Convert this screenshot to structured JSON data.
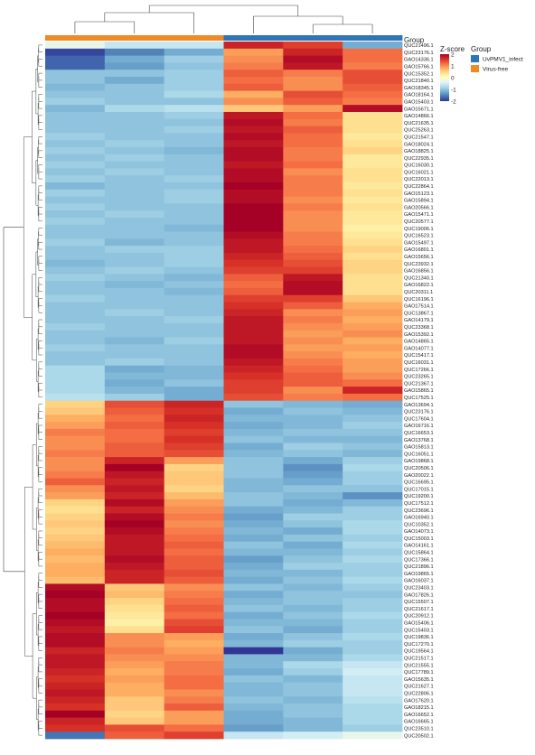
{
  "chart_data": {
    "type": "heatmap",
    "title": "",
    "group_label": "Group",
    "zscore_label": "Z-score",
    "legend_groups": [
      {
        "name": "UvPMV1_infect",
        "color": "#2e75b6"
      },
      {
        "name": "Virus-free",
        "color": "#f08a24"
      }
    ],
    "column_groups": [
      "Virus-free",
      "Virus-free",
      "Virus-free",
      "UvPMV1_infect",
      "UvPMV1_infect",
      "UvPMV1_infect"
    ],
    "color_scale": {
      "range": [
        -2,
        2
      ],
      "ticks": [
        2,
        1,
        0,
        -1,
        -2
      ],
      "colors": [
        "#313695",
        "#4575b4",
        "#74add1",
        "#abd9e9",
        "#e0f3f8",
        "#ffffbf",
        "#fee090",
        "#fdae61",
        "#f46d43",
        "#d73027",
        "#a50026"
      ]
    },
    "rows": [
      "QUC21496.1",
      "QUC23176.1",
      "GAO14336.1",
      "GAO15766.1",
      "QUC15352.1",
      "QUC21840.1",
      "GAO18345.1",
      "GAO18164.1",
      "GAO15403.1",
      "GAO15671.1",
      "GAO14866.1",
      "QUC21635.1",
      "QUC25263.1",
      "QUC21547.1",
      "GAO18024.1",
      "GAO18825.1",
      "QUC22935.1",
      "QUC16030.1",
      "QUC16021.1",
      "QUC22013.1",
      "QUC22864.1",
      "GAO15123.1",
      "GAO15894.1",
      "GAO20566.1",
      "GAO15471.1",
      "QUC20577.1",
      "QUC19006.1",
      "QUC16523.1",
      "GAO15497.1",
      "GAO16801.1",
      "GAO15656.1",
      "QUC23932.1",
      "GAO16856.1",
      "QUC21340.1",
      "GAO16822.1",
      "QUC20311.1",
      "QUC16196.1",
      "GAO17514.1",
      "QUC13867.1",
      "GAO14179.1",
      "QUC23368.1",
      "GAO15392.1",
      "GAO14865.1",
      "GAO14077.1",
      "QUC15417.1",
      "QUC16031.1",
      "QUC17266.1",
      "QUC23265.1",
      "QUC21367.1",
      "GAO15865.1",
      "QUC17525.1",
      "GAO13694.1",
      "QUC23176.1",
      "QUC17604.1",
      "GAO16716.1",
      "QUC16653.1",
      "GAO13768.1",
      "GAO15813.1",
      "QUC16051.1",
      "GAO19868.1",
      "QUC20506.1",
      "GAO20022.1",
      "QUC16695.1",
      "QUC17015.1",
      "QUC19200.1",
      "QUC17512.1",
      "QUC23696.1",
      "GAO16940.1",
      "QUC10352.1",
      "GAO14073.1",
      "QUC15003.1",
      "GAO14161.1",
      "QUC15864.1",
      "QUC17366.1",
      "QUC21896.1",
      "GAO19865.1",
      "GAO16037.1",
      "QUC23403.1",
      "GAO17826.1",
      "QUC15507.1",
      "QUC21617.1",
      "QUC20912.1",
      "GAO15406.1",
      "QUC15403.1",
      "QUC19836.1",
      "QUC17270.1",
      "QUC19564.1",
      "QUC21517.1",
      "QUC21555.1",
      "QUC17789.1",
      "GAO15635.1",
      "QUC21627.1",
      "QUC22806.1",
      "GAO17620.1",
      "GAO18215.1",
      "GAO16652.1",
      "GAO16665.1",
      "QUC23510.1",
      "QUC20502.1"
    ],
    "values": [
      [
        -0.3,
        -0.6,
        -0.6,
        1.7,
        1.5,
        -1.2
      ],
      [
        -1.9,
        -1.5,
        -1.2,
        0.9,
        1.7,
        1.2
      ],
      [
        -1.7,
        -1.2,
        -0.9,
        1.0,
        1.9,
        1.2
      ],
      [
        -1.7,
        -1.3,
        -1.0,
        1.1,
        1.8,
        1.1
      ],
      [
        -1.0,
        -1.0,
        -0.9,
        1.3,
        1.1,
        1.4
      ],
      [
        -1.0,
        -1.2,
        -0.9,
        1.2,
        1.0,
        1.4
      ],
      [
        -1.1,
        -1.0,
        -0.9,
        1.3,
        1.0,
        1.3
      ],
      [
        -1.0,
        -1.0,
        -0.8,
        0.8,
        1.4,
        1.2
      ],
      [
        -0.9,
        -1.0,
        -1.0,
        1.0,
        1.3,
        1.1
      ],
      [
        -1.1,
        -0.8,
        -0.7,
        0.6,
        0.9,
        1.9
      ],
      [
        -1.0,
        -1.0,
        -0.9,
        1.8,
        1.2,
        0.4
      ],
      [
        -1.0,
        -1.0,
        -1.0,
        1.9,
        1.1,
        0.4
      ],
      [
        -1.0,
        -1.0,
        -0.9,
        1.8,
        1.3,
        0.4
      ],
      [
        -0.9,
        -1.0,
        -1.0,
        1.9,
        1.2,
        0.3
      ],
      [
        -1.0,
        -0.9,
        -1.0,
        1.8,
        1.2,
        0.4
      ],
      [
        -0.9,
        -1.0,
        -1.1,
        1.9,
        1.1,
        0.5
      ],
      [
        -1.0,
        -0.9,
        -1.0,
        1.9,
        1.1,
        0.3
      ],
      [
        -0.9,
        -1.0,
        -1.0,
        1.8,
        1.2,
        0.3
      ],
      [
        -1.0,
        -0.9,
        -1.0,
        1.9,
        1.0,
        0.4
      ],
      [
        -0.9,
        -1.0,
        -0.9,
        1.9,
        1.1,
        0.4
      ],
      [
        -1.1,
        -1.0,
        -1.0,
        2.0,
        1.1,
        0.3
      ],
      [
        -0.9,
        -1.0,
        -0.9,
        1.9,
        1.1,
        0.4
      ],
      [
        -1.0,
        -1.0,
        -0.9,
        1.9,
        1.0,
        0.3
      ],
      [
        -0.9,
        -1.0,
        -1.0,
        2.0,
        1.1,
        0.4
      ],
      [
        -1.0,
        -0.9,
        -1.0,
        2.0,
        1.0,
        0.3
      ],
      [
        -0.9,
        -1.0,
        -1.0,
        2.0,
        1.0,
        0.3
      ],
      [
        -1.0,
        -1.0,
        -1.1,
        2.0,
        1.0,
        0.2
      ],
      [
        -1.0,
        -1.0,
        -1.0,
        1.9,
        1.1,
        0.3
      ],
      [
        -0.9,
        -1.1,
        -1.0,
        1.8,
        1.1,
        0.4
      ],
      [
        -1.0,
        -0.9,
        -0.9,
        1.8,
        1.2,
        0.5
      ],
      [
        -1.0,
        -1.0,
        -0.9,
        1.7,
        1.3,
        0.4
      ],
      [
        -1.1,
        -1.0,
        -0.9,
        1.6,
        1.4,
        0.5
      ],
      [
        -1.0,
        -0.9,
        -1.0,
        1.5,
        1.5,
        0.5
      ],
      [
        -0.9,
        -1.0,
        -1.1,
        1.3,
        1.8,
        0.4
      ],
      [
        -1.0,
        -1.1,
        -1.0,
        1.2,
        1.9,
        0.4
      ],
      [
        -1.0,
        -1.0,
        -1.1,
        1.3,
        1.9,
        0.4
      ],
      [
        -0.9,
        -1.0,
        -1.0,
        1.5,
        1.5,
        0.6
      ],
      [
        -1.0,
        -1.0,
        -1.0,
        1.6,
        1.3,
        0.8
      ],
      [
        -1.0,
        -0.9,
        -1.0,
        1.7,
        1.0,
        0.9
      ],
      [
        -1.0,
        -1.0,
        -0.9,
        1.8,
        1.1,
        0.8
      ],
      [
        -0.9,
        -1.0,
        -1.0,
        1.8,
        1.0,
        0.9
      ],
      [
        -1.0,
        -1.0,
        -1.0,
        1.8,
        0.9,
        1.0
      ],
      [
        -1.0,
        -1.1,
        -0.9,
        1.8,
        1.0,
        0.8
      ],
      [
        -0.9,
        -1.0,
        -1.0,
        1.9,
        0.9,
        0.9
      ],
      [
        -1.0,
        -1.0,
        -1.0,
        1.9,
        1.0,
        0.8
      ],
      [
        -1.0,
        -0.9,
        -1.0,
        1.8,
        1.1,
        0.9
      ],
      [
        -0.8,
        -1.2,
        -1.1,
        1.7,
        1.2,
        0.9
      ],
      [
        -0.8,
        -1.1,
        -1.1,
        1.6,
        1.3,
        1.0
      ],
      [
        -0.8,
        -1.2,
        -1.0,
        1.5,
        1.3,
        1.2
      ],
      [
        -0.8,
        -1.1,
        -1.2,
        1.5,
        1.0,
        1.7
      ],
      [
        -0.7,
        -0.9,
        -1.2,
        1.4,
        1.1,
        1.2
      ],
      [
        0.5,
        1.4,
        1.7,
        -1.0,
        -1.1,
        -1.2
      ],
      [
        0.6,
        1.3,
        1.6,
        -1.2,
        -1.0,
        -1.1
      ],
      [
        0.8,
        1.2,
        1.7,
        -1.1,
        -1.1,
        -1.0
      ],
      [
        0.9,
        1.3,
        1.6,
        -1.2,
        -1.1,
        -0.9
      ],
      [
        1.1,
        1.2,
        1.5,
        -1.1,
        -1.0,
        -1.0
      ],
      [
        1.0,
        1.2,
        1.6,
        -1.0,
        -1.1,
        -1.1
      ],
      [
        1.0,
        1.3,
        1.5,
        -1.2,
        -0.9,
        -1.0
      ],
      [
        1.1,
        1.3,
        1.4,
        -1.1,
        -1.0,
        -1.1
      ],
      [
        1.0,
        1.7,
        0.9,
        -1.0,
        -1.2,
        -0.9
      ],
      [
        1.0,
        2.0,
        0.5,
        -1.0,
        -1.4,
        -0.8
      ],
      [
        1.1,
        1.8,
        0.6,
        -1.0,
        -1.3,
        -0.9
      ],
      [
        1.3,
        1.7,
        0.6,
        -1.1,
        -1.2,
        -0.9
      ],
      [
        1.0,
        1.8,
        0.5,
        -1.1,
        -1.0,
        -1.0
      ],
      [
        0.9,
        1.7,
        0.7,
        -1.0,
        -1.1,
        -1.4
      ],
      [
        0.5,
        1.9,
        0.9,
        -1.0,
        -1.2,
        -1.1
      ],
      [
        0.4,
        1.7,
        1.0,
        -1.2,
        -1.1,
        -0.9
      ],
      [
        0.5,
        1.9,
        1.1,
        -1.3,
        -0.9,
        -0.9
      ],
      [
        0.6,
        2.0,
        1.0,
        -1.2,
        -1.0,
        -0.8
      ],
      [
        0.5,
        1.9,
        1.1,
        -1.1,
        -1.2,
        -0.8
      ],
      [
        0.6,
        1.8,
        1.2,
        -1.2,
        -1.0,
        -0.9
      ],
      [
        0.7,
        1.8,
        1.3,
        -1.0,
        -1.2,
        -0.8
      ],
      [
        0.8,
        1.8,
        1.2,
        -1.1,
        -1.1,
        -0.9
      ],
      [
        0.7,
        1.9,
        1.3,
        -1.3,
        -1.0,
        -0.8
      ],
      [
        0.8,
        1.8,
        1.3,
        -1.2,
        -0.9,
        -0.9
      ],
      [
        0.8,
        1.7,
        1.4,
        -1.1,
        -1.1,
        -0.9
      ],
      [
        0.7,
        1.7,
        1.3,
        -1.2,
        -1.0,
        -0.8
      ],
      [
        1.9,
        0.6,
        1.0,
        -1.0,
        -1.1,
        -0.9
      ],
      [
        2.0,
        0.7,
        1.1,
        -1.2,
        -1.0,
        -1.0
      ],
      [
        1.9,
        0.5,
        1.2,
        -1.1,
        -1.0,
        -0.9
      ],
      [
        1.9,
        0.4,
        1.3,
        -1.0,
        -1.1,
        -0.9
      ],
      [
        2.0,
        0.3,
        1.2,
        -1.2,
        -1.0,
        -0.8
      ],
      [
        1.9,
        0.2,
        1.4,
        -1.1,
        -1.1,
        -0.9
      ],
      [
        1.8,
        0.4,
        1.5,
        -1.0,
        -1.2,
        -0.9
      ],
      [
        1.9,
        1.0,
        0.9,
        -1.2,
        -1.0,
        -0.8
      ],
      [
        1.9,
        1.0,
        0.8,
        -1.1,
        -0.9,
        -0.9
      ],
      [
        1.7,
        1.1,
        0.9,
        -2.0,
        -1.2,
        -0.9
      ],
      [
        1.8,
        1.0,
        1.0,
        -1.1,
        -1.1,
        -0.8
      ],
      [
        1.8,
        0.9,
        1.1,
        -1.1,
        -0.8,
        -0.6
      ],
      [
        1.7,
        0.8,
        1.1,
        -1.2,
        -0.9,
        -0.5
      ],
      [
        1.6,
        0.9,
        1.2,
        -1.0,
        -1.1,
        -0.6
      ],
      [
        1.7,
        0.8,
        1.2,
        -1.1,
        -1.0,
        -0.6
      ],
      [
        1.8,
        0.8,
        1.0,
        -1.1,
        -1.0,
        -0.6
      ],
      [
        1.7,
        0.6,
        1.1,
        -1.0,
        -1.1,
        -0.7
      ],
      [
        1.6,
        0.6,
        1.3,
        -1.1,
        -1.0,
        -0.8
      ],
      [
        2.0,
        0.5,
        0.9,
        -1.2,
        -1.0,
        -0.8
      ],
      [
        1.7,
        0.6,
        0.9,
        -1.2,
        -1.1,
        -0.8
      ],
      [
        1.6,
        1.4,
        1.2,
        -1.3,
        -1.1,
        -0.9
      ],
      [
        -1.6,
        1.3,
        1.5,
        -0.6,
        -0.5,
        -0.3
      ]
    ]
  }
}
